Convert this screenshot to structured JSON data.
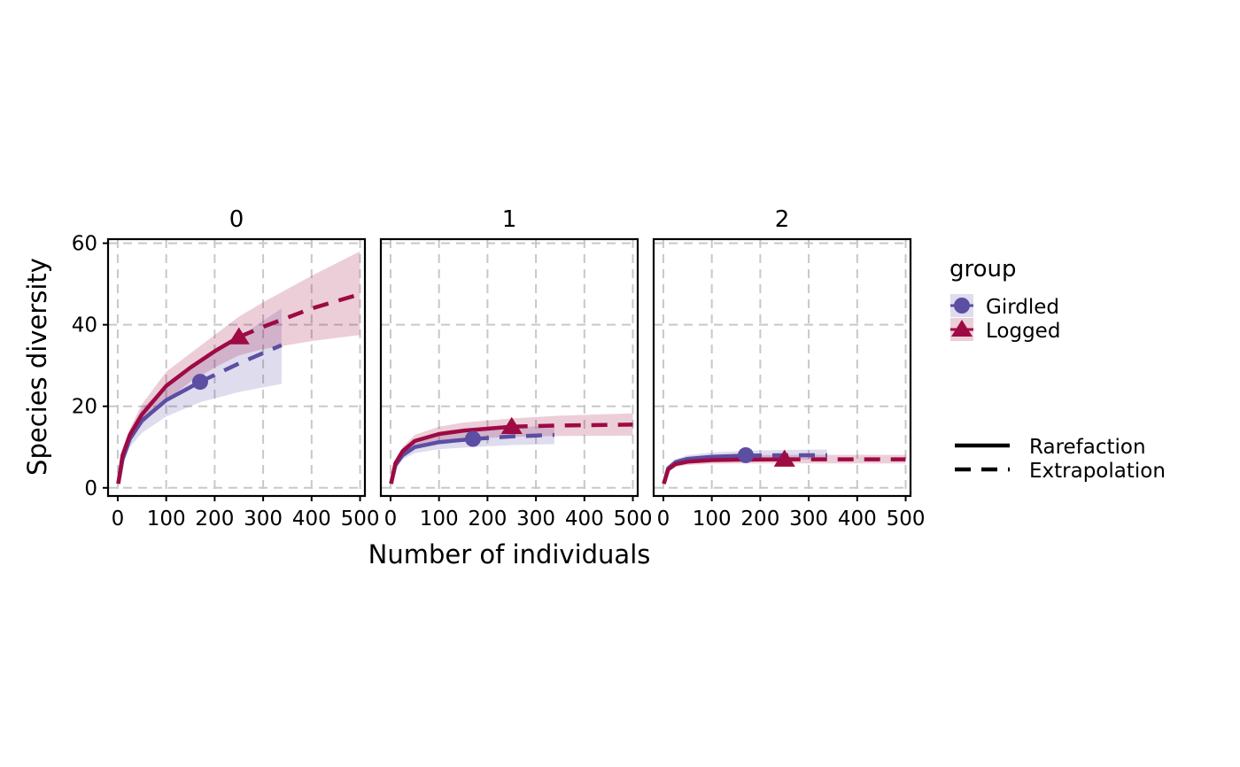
{
  "chart_data": {
    "type": "line",
    "xlabel": "Number of individuals",
    "ylabel": "Species diversity",
    "xlim": [
      -20,
      510
    ],
    "ylim": [
      -2,
      61
    ],
    "xticks": [
      0,
      100,
      200,
      300,
      400,
      500
    ],
    "yticks": [
      0,
      20,
      40,
      60
    ],
    "grid": true,
    "legend": {
      "title": "group",
      "position": "right",
      "groups": [
        {
          "name": "Girdled",
          "color": "#5b4ea3",
          "shape": "circle"
        },
        {
          "name": "Logged",
          "color": "#9e0a43",
          "shape": "triangle"
        }
      ],
      "linetypes": [
        {
          "name": "Rarefaction",
          "style": "solid"
        },
        {
          "name": "Extrapolation",
          "style": "dashed"
        }
      ]
    },
    "panels": [
      {
        "label": "0",
        "series": [
          {
            "name": "Girdled",
            "observed": [
              170,
              26
            ],
            "final": [
              338,
              35
            ],
            "x": [
              1,
              10,
              25,
              50,
              100,
              170,
              250,
              338
            ],
            "y": [
              1,
              7,
              12,
              16.5,
              21.5,
              26,
              30.5,
              35
            ],
            "lower": [
              1,
              6,
              10,
              13.5,
              17.5,
              21,
              23.5,
              25.5
            ],
            "upper": [
              1,
              8,
              14,
              19.5,
              25,
              31,
              37,
              44
            ]
          },
          {
            "name": "Logged",
            "observed": [
              250,
              37
            ],
            "final": [
              500,
              47.5
            ],
            "x": [
              1,
              10,
              25,
              50,
              100,
              150,
              200,
              250,
              300,
              400,
              500
            ],
            "y": [
              1,
              8,
              13,
              18,
              25,
              29.5,
              33.5,
              37,
              39.5,
              44,
              47.5
            ],
            "lower": [
              1,
              7,
              11.5,
              15.5,
              21.5,
              26,
              29.5,
              32.5,
              34,
              36,
              37.5
            ],
            "upper": [
              1,
              9,
              14.5,
              20.5,
              28.5,
              33,
              37.5,
              42,
              45.5,
              52,
              58
            ]
          }
        ]
      },
      {
        "label": "1",
        "series": [
          {
            "name": "Girdled",
            "observed": [
              170,
              12
            ],
            "final": [
              338,
              13
            ],
            "x": [
              1,
              10,
              25,
              50,
              100,
              170,
              250,
              338
            ],
            "y": [
              1,
              5.5,
              8,
              10,
              11.2,
              12,
              12.6,
              13
            ],
            "lower": [
              1,
              5,
              7,
              8.5,
              9.5,
              10,
              10.5,
              10.7
            ],
            "upper": [
              1,
              6,
              9,
              11.5,
              13,
              14,
              14.8,
              15.3
            ]
          },
          {
            "name": "Logged",
            "observed": [
              250,
              15
            ],
            "final": [
              500,
              15.5
            ],
            "x": [
              1,
              10,
              25,
              50,
              100,
              150,
              250,
              350,
              500
            ],
            "y": [
              1,
              6,
              9,
              11.5,
              13.2,
              14,
              15,
              15.3,
              15.5
            ],
            "lower": [
              1,
              5.5,
              8,
              10,
              11.5,
              12,
              12.5,
              12.7,
              12.8
            ],
            "upper": [
              1,
              6.5,
              10,
              13,
              15,
              16,
              17,
              17.7,
              18.3
            ]
          }
        ]
      },
      {
        "label": "2",
        "series": [
          {
            "name": "Girdled",
            "observed": [
              170,
              8
            ],
            "final": [
              338,
              8
            ],
            "x": [
              1,
              10,
              25,
              50,
              100,
              170,
              250,
              338
            ],
            "y": [
              1,
              4.8,
              6.3,
              7.1,
              7.6,
              7.9,
              8,
              8
            ],
            "lower": [
              1,
              4.3,
              5.6,
              6.2,
              6.6,
              6.8,
              6.9,
              6.9
            ],
            "upper": [
              1,
              5.3,
              7,
              8,
              8.7,
              9.1,
              9.3,
              9.4
            ]
          },
          {
            "name": "Logged",
            "observed": [
              250,
              7
            ],
            "final": [
              500,
              7
            ],
            "x": [
              1,
              10,
              25,
              50,
              100,
              150,
              250,
              350,
              500
            ],
            "y": [
              1,
              4.5,
              5.8,
              6.4,
              6.8,
              6.9,
              7,
              7,
              7
            ],
            "lower": [
              1,
              4.1,
              5.2,
              5.6,
              5.9,
              6,
              6,
              6,
              6
            ],
            "upper": [
              1,
              5,
              6.5,
              7.3,
              7.8,
              8,
              8.1,
              8.1,
              8.1
            ]
          }
        ]
      }
    ]
  }
}
